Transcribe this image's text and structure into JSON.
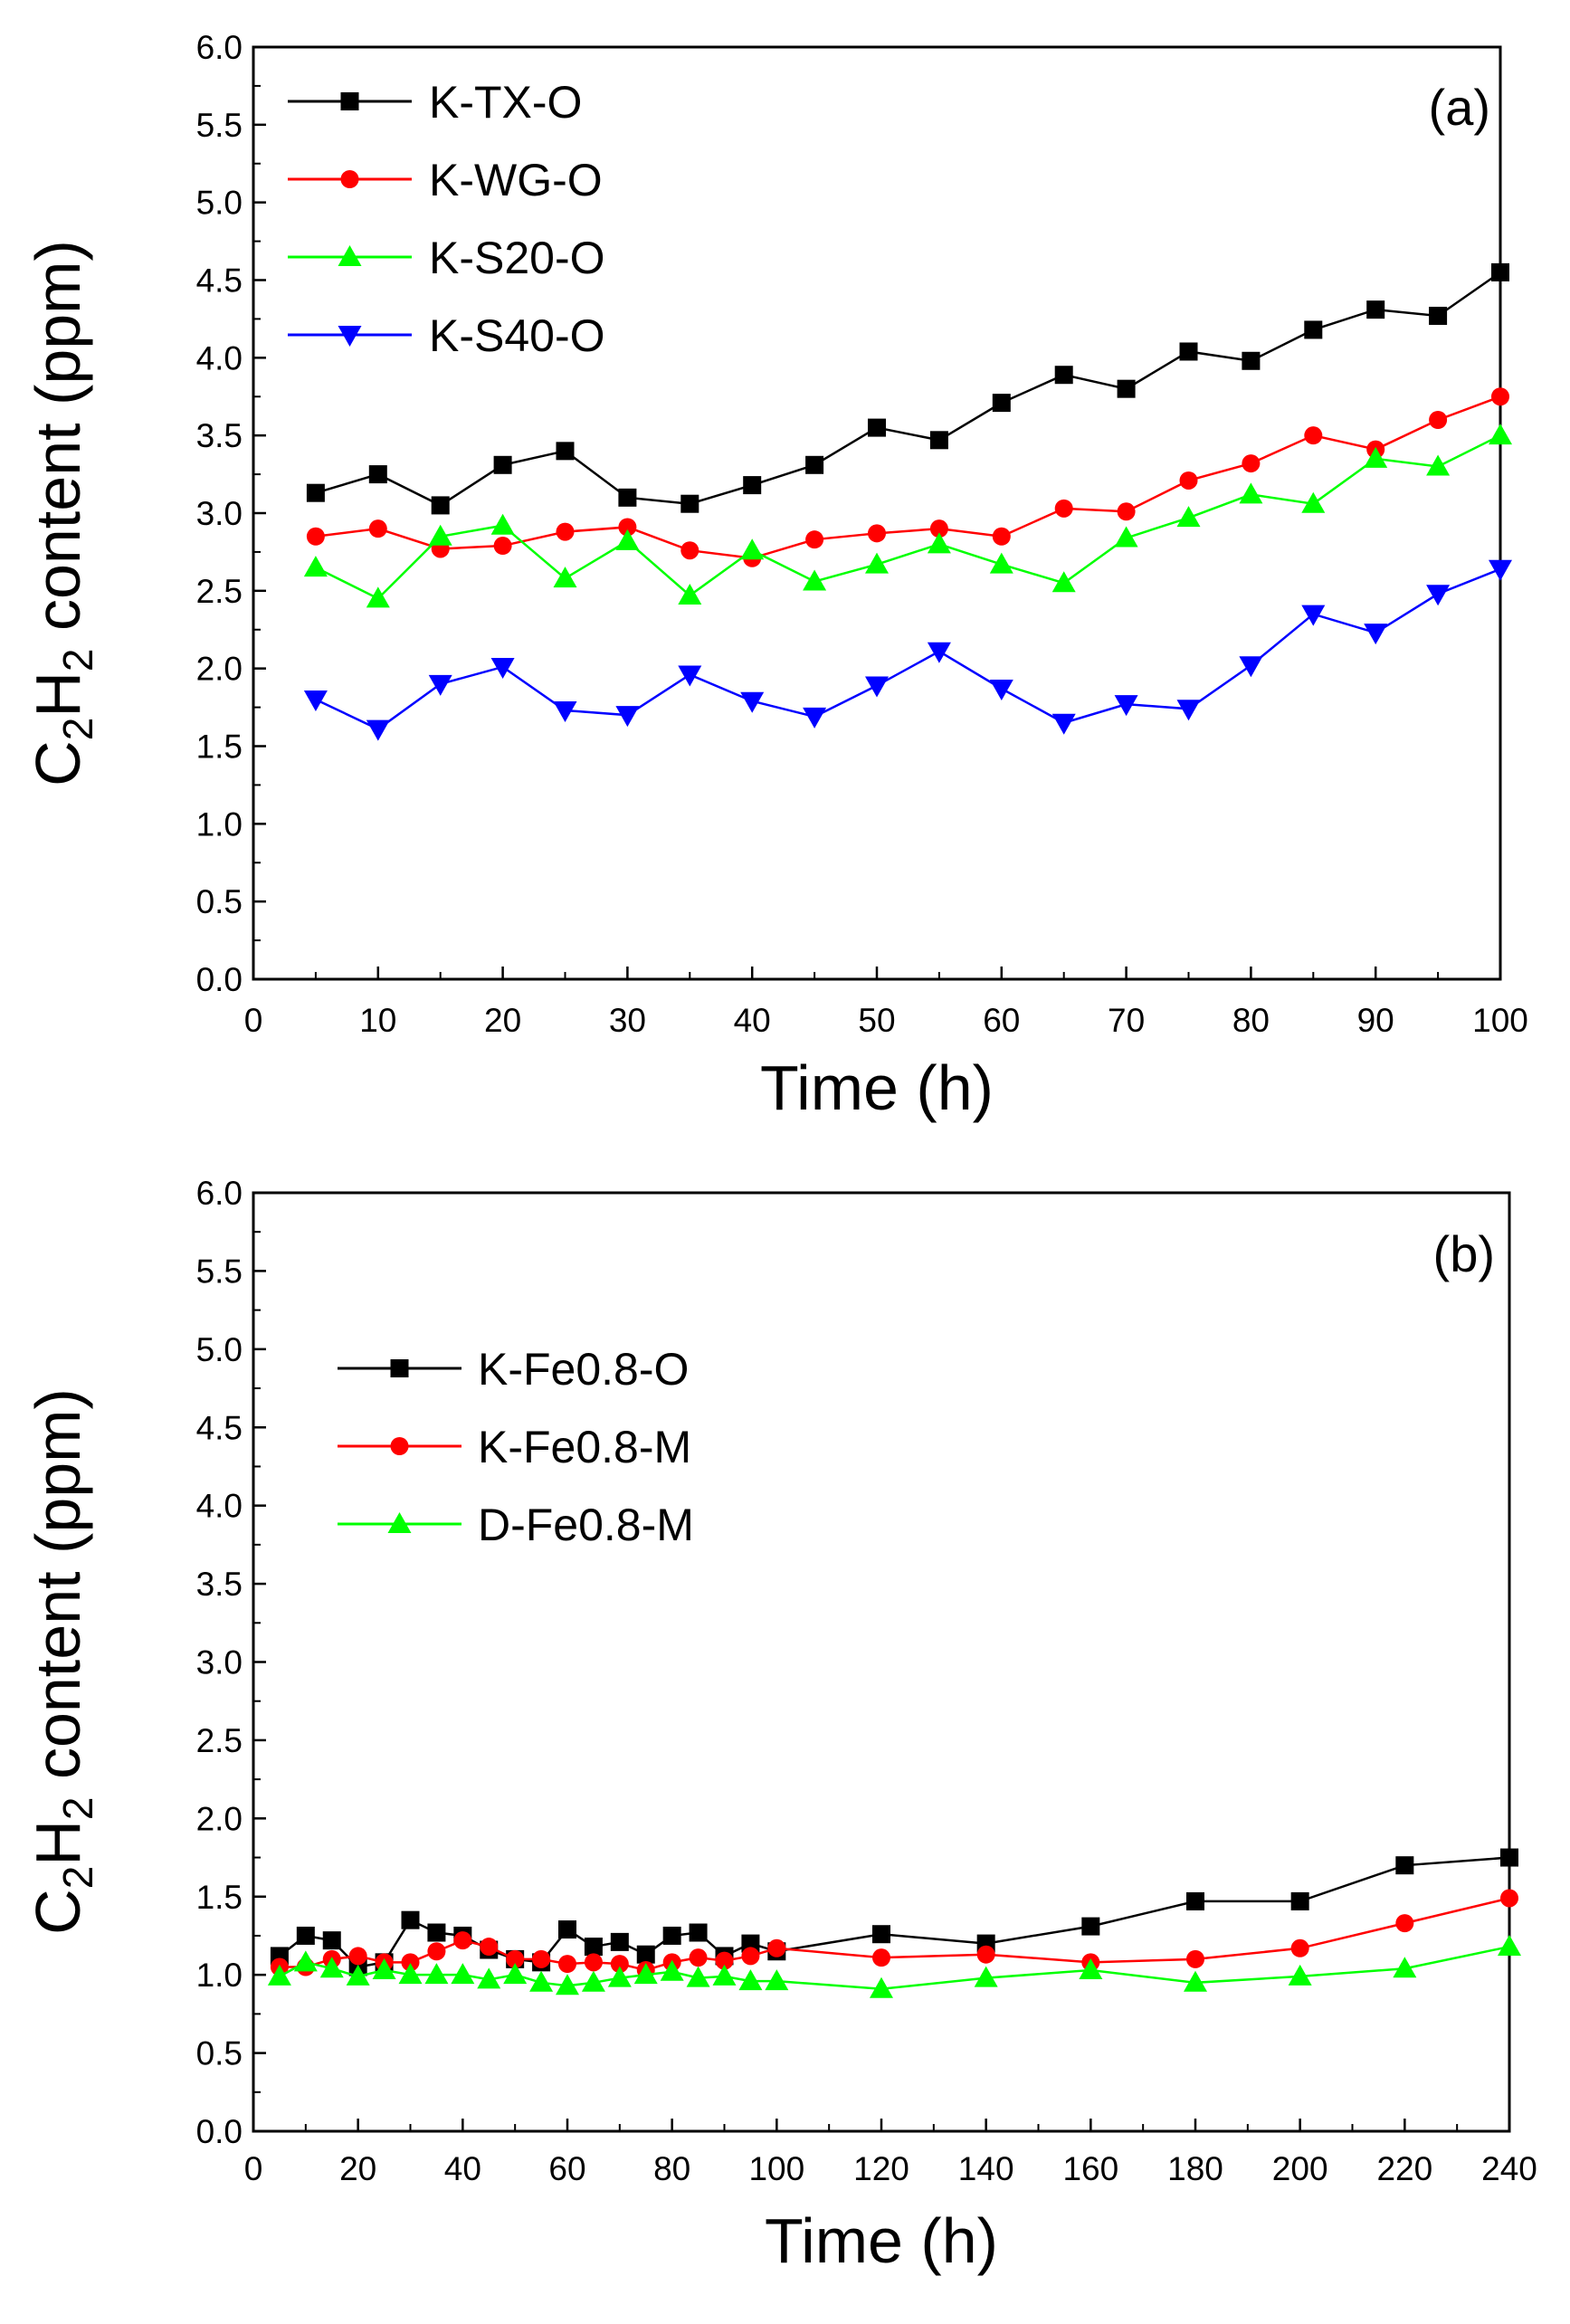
{
  "chart_data": [
    {
      "type": "line",
      "panel_label": "(a)",
      "xlabel": "Time (h)",
      "ylabel_parts": [
        "C",
        "2",
        "H",
        "2",
        " content (ppm)"
      ],
      "xlim": [
        0,
        100
      ],
      "ylim": [
        0,
        6
      ],
      "xticks": [
        "0",
        "10",
        "20",
        "30",
        "40",
        "50",
        "60",
        "70",
        "80",
        "90",
        "100"
      ],
      "yticks": [
        "0.0",
        "0.5",
        "1.0",
        "1.5",
        "2.0",
        "2.5",
        "3.0",
        "3.5",
        "4.0",
        "4.5",
        "5.0",
        "5.5",
        "6.0"
      ],
      "legend_position": "top-left",
      "series": [
        {
          "name": "K-TX-O",
          "color": "#000000",
          "marker": "square",
          "x": [
            5,
            10,
            15,
            20,
            25,
            30,
            35,
            40,
            45,
            50,
            55,
            60,
            65,
            70,
            75,
            80,
            85,
            90,
            95,
            100
          ],
          "y": [
            3.13,
            3.25,
            3.05,
            3.31,
            3.4,
            3.1,
            3.06,
            3.18,
            3.31,
            3.55,
            3.47,
            3.71,
            3.89,
            3.8,
            4.04,
            3.98,
            4.18,
            4.31,
            4.27,
            4.55
          ]
        },
        {
          "name": "K-WG-O",
          "color": "#ff0000",
          "marker": "circle",
          "x": [
            5,
            10,
            15,
            20,
            25,
            30,
            35,
            40,
            45,
            50,
            55,
            60,
            65,
            70,
            75,
            80,
            85,
            90,
            95,
            100
          ],
          "y": [
            2.85,
            2.9,
            2.77,
            2.79,
            2.88,
            2.91,
            2.76,
            2.71,
            2.83,
            2.87,
            2.9,
            2.85,
            3.03,
            3.01,
            3.21,
            3.32,
            3.5,
            3.41,
            3.6,
            3.75
          ]
        },
        {
          "name": "K-S20-O",
          "color": "#00ff00",
          "marker": "triangle-up",
          "x": [
            5,
            10,
            15,
            20,
            25,
            30,
            35,
            40,
            45,
            50,
            55,
            60,
            65,
            70,
            75,
            80,
            85,
            90,
            95,
            100
          ],
          "y": [
            2.65,
            2.45,
            2.85,
            2.92,
            2.58,
            2.82,
            2.47,
            2.76,
            2.56,
            2.67,
            2.8,
            2.67,
            2.55,
            2.84,
            2.97,
            3.12,
            3.06,
            3.35,
            3.3,
            3.5
          ]
        },
        {
          "name": "K-S40-O",
          "color": "#0000ff",
          "marker": "triangle-down",
          "x": [
            5,
            10,
            15,
            20,
            25,
            30,
            35,
            40,
            45,
            50,
            55,
            60,
            65,
            70,
            75,
            80,
            85,
            90,
            95,
            100
          ],
          "y": [
            1.8,
            1.61,
            1.9,
            2.01,
            1.73,
            1.7,
            1.96,
            1.79,
            1.69,
            1.89,
            2.11,
            1.87,
            1.65,
            1.77,
            1.74,
            2.02,
            2.35,
            2.23,
            2.48,
            2.64
          ]
        }
      ]
    },
    {
      "type": "line",
      "panel_label": "(b)",
      "xlabel": "Time (h)",
      "ylabel_parts": [
        "C",
        "2",
        "H",
        "2",
        " content (ppm)"
      ],
      "xlim": [
        0,
        240
      ],
      "ylim": [
        0,
        6
      ],
      "xticks": [
        "0",
        "20",
        "40",
        "60",
        "80",
        "100",
        "120",
        "140",
        "160",
        "180",
        "200",
        "220",
        "240"
      ],
      "yticks": [
        "0.0",
        "0.5",
        "1.0",
        "1.5",
        "2.0",
        "2.5",
        "3.0",
        "3.5",
        "4.0",
        "4.5",
        "5.0",
        "5.5",
        "6.0"
      ],
      "legend_position": "upper-left",
      "series": [
        {
          "name": "K-Fe0.8-O",
          "color": "#000000",
          "marker": "square",
          "x": [
            5,
            10,
            15,
            20,
            25,
            30,
            35,
            40,
            45,
            50,
            55,
            60,
            65,
            70,
            75,
            80,
            85,
            90,
            95,
            100,
            120,
            140,
            160,
            180,
            200,
            220,
            240
          ],
          "y": [
            1.12,
            1.25,
            1.22,
            1.05,
            1.08,
            1.35,
            1.27,
            1.25,
            1.16,
            1.1,
            1.08,
            1.29,
            1.18,
            1.21,
            1.13,
            1.25,
            1.27,
            1.12,
            1.2,
            1.15,
            1.26,
            1.2,
            1.31,
            1.47,
            1.47,
            1.7,
            1.75
          ]
        },
        {
          "name": "K-Fe0.8-M",
          "color": "#ff0000",
          "marker": "circle",
          "x": [
            5,
            10,
            15,
            20,
            25,
            30,
            35,
            40,
            45,
            50,
            55,
            60,
            65,
            70,
            75,
            80,
            85,
            90,
            95,
            100,
            120,
            140,
            160,
            180,
            200,
            220,
            240
          ],
          "y": [
            1.05,
            1.05,
            1.1,
            1.12,
            1.08,
            1.08,
            1.15,
            1.22,
            1.18,
            1.1,
            1.1,
            1.07,
            1.08,
            1.07,
            1.03,
            1.08,
            1.11,
            1.09,
            1.12,
            1.17,
            1.11,
            1.13,
            1.08,
            1.1,
            1.17,
            1.33,
            1.49
          ]
        },
        {
          "name": "D-Fe0.8-M",
          "color": "#00ff00",
          "marker": "triangle-up",
          "x": [
            5,
            10,
            15,
            20,
            25,
            30,
            35,
            40,
            45,
            50,
            55,
            60,
            65,
            70,
            75,
            80,
            85,
            90,
            95,
            100,
            120,
            140,
            160,
            180,
            200,
            220,
            240
          ],
          "y": [
            0.99,
            1.08,
            1.04,
            0.99,
            1.03,
            1.0,
            1.0,
            1.0,
            0.97,
            1.0,
            0.95,
            0.93,
            0.95,
            0.98,
            1.0,
            1.02,
            0.98,
            0.99,
            0.96,
            0.96,
            0.91,
            0.98,
            1.03,
            0.95,
            0.99,
            1.04,
            1.18
          ]
        }
      ]
    }
  ]
}
